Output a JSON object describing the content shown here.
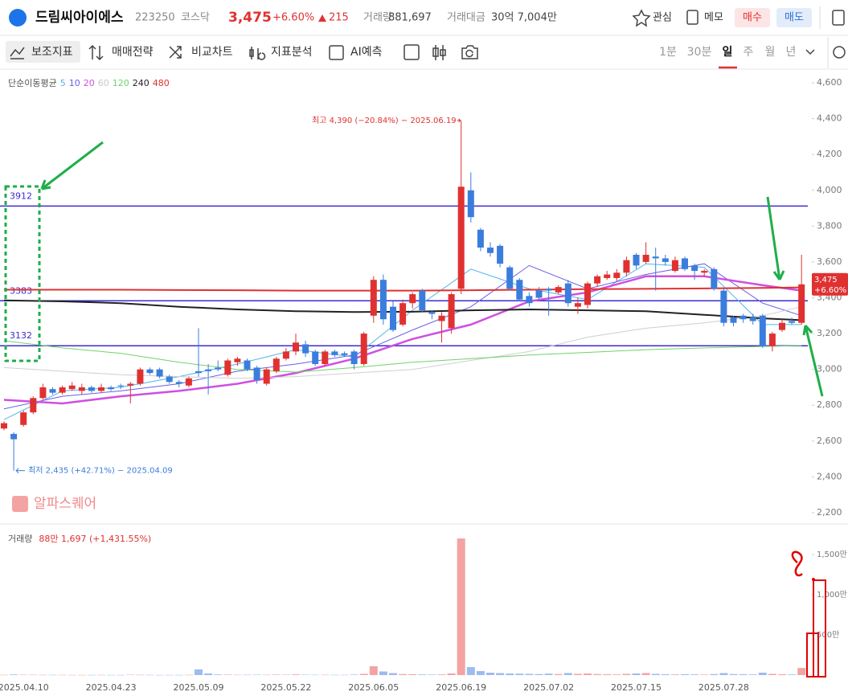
{
  "header": {
    "name": "드림씨아이에스",
    "code": "223250",
    "market": "코스닥",
    "price": "3,475",
    "change_pct": "+6.60%",
    "change": "215",
    "volume_label": "거래량",
    "volume": "881,697",
    "amount_label": "거래대금",
    "amount": "30억 7,004만",
    "watch": "관심",
    "memo": "메모",
    "buy": "매수",
    "sell": "매도"
  },
  "toolbar": {
    "tools": [
      "보조지표",
      "매매전략",
      "비교차트",
      "지표분석",
      "AI예측"
    ],
    "timeframes": [
      "1분",
      "30분",
      "일",
      "주",
      "월",
      "년"
    ]
  },
  "chart_data": [
    {
      "type": "candlestick",
      "legend_title": "단순이동평균",
      "watermark": "알파스퀘어",
      "categories": [
        null,
        null,
        "2025.04.10",
        null,
        null,
        null,
        null,
        null,
        null,
        null,
        null,
        "2025.04.23",
        null,
        null,
        null,
        null,
        null,
        null,
        null,
        null,
        "2025.05.09",
        null,
        null,
        null,
        null,
        null,
        null,
        null,
        null,
        "2025.05.22",
        null,
        null,
        null,
        null,
        null,
        null,
        null,
        null,
        "2025.06.05",
        null,
        null,
        null,
        null,
        null,
        null,
        null,
        null,
        "2025.06.19",
        null,
        null,
        null,
        null,
        null,
        null,
        null,
        null,
        "2025.07.02",
        null,
        null,
        null,
        null,
        null,
        null,
        null,
        null,
        "2025.07.15",
        null,
        null,
        null,
        null,
        null,
        null,
        null,
        null,
        "2025.07.28",
        null,
        null,
        null,
        null,
        null,
        null,
        null,
        null
      ],
      "open": [
        2670,
        2640,
        2690,
        2760,
        2840,
        2890,
        2870,
        2890,
        2880,
        2900,
        2880,
        2900,
        2910,
        2910,
        2920,
        3000,
        3000,
        2960,
        2930,
        2910,
        2990,
        3000,
        3010,
        2970,
        3040,
        3050,
        3010,
        2920,
        2990,
        3060,
        3100,
        3140,
        3100,
        3030,
        3100,
        3090,
        3100,
        3030,
        3300,
        3500,
        3350,
        3250,
        3370,
        3440,
        3320,
        3270,
        3230,
        3450,
        4000,
        3780,
        3680,
        3690,
        3570,
        3500,
        3410,
        3440,
        3450,
        3430,
        3480,
        3350,
        3360,
        3480,
        3510,
        3510,
        3540,
        3640,
        3600,
        3630,
        3620,
        3550,
        3620,
        3580,
        3540,
        3560,
        3440,
        3290,
        3300,
        3290,
        3300,
        3130,
        3220,
        3270,
        3260
      ],
      "high": [
        2710,
        2650,
        2770,
        2850,
        2920,
        2900,
        2910,
        2930,
        2920,
        2910,
        2920,
        2910,
        2920,
        2930,
        3010,
        3010,
        3010,
        2970,
        2940,
        2960,
        3230,
        3030,
        3050,
        3060,
        3070,
        3060,
        3020,
        3010,
        3070,
        3120,
        3200,
        3160,
        3110,
        3110,
        3110,
        3100,
        3110,
        3210,
        3520,
        3530,
        3380,
        3390,
        3430,
        3450,
        3330,
        3320,
        3430,
        4390,
        4100,
        3790,
        3710,
        3700,
        3580,
        3510,
        3430,
        3460,
        3460,
        3470,
        3500,
        3400,
        3490,
        3530,
        3550,
        3560,
        3630,
        3650,
        3710,
        3680,
        3640,
        3630,
        3630,
        3590,
        3560,
        3570,
        3450,
        3300,
        3310,
        3310,
        3310,
        3210,
        3280,
        3290,
        3640
      ],
      "low": [
        2660,
        2435,
        2680,
        2750,
        2830,
        2860,
        2860,
        2880,
        2860,
        2870,
        2870,
        2880,
        2890,
        2810,
        2910,
        2970,
        2950,
        2920,
        2900,
        2900,
        2960,
        2860,
        2990,
        2960,
        3020,
        2990,
        2920,
        2910,
        2980,
        3050,
        3080,
        3070,
        3020,
        3020,
        3070,
        3070,
        3000,
        3020,
        3260,
        3250,
        3210,
        3240,
        3340,
        3320,
        3280,
        3150,
        3200,
        3420,
        3820,
        3660,
        3630,
        3570,
        3440,
        3380,
        3350,
        3390,
        3300,
        3420,
        3350,
        3310,
        3340,
        3460,
        3500,
        3490,
        3520,
        3560,
        3590,
        3440,
        3580,
        3540,
        3550,
        3500,
        3520,
        3440,
        3240,
        3240,
        3260,
        3250,
        3120,
        3100,
        3210,
        3250,
        3250
      ],
      "close": [
        2700,
        2610,
        2760,
        2840,
        2900,
        2870,
        2900,
        2910,
        2900,
        2880,
        2900,
        2890,
        2905,
        2920,
        3000,
        2980,
        2960,
        2930,
        2920,
        2950,
        2980,
        2990,
        3000,
        3050,
        3060,
        3000,
        2940,
        3000,
        3060,
        3100,
        3150,
        3090,
        3030,
        3100,
        3080,
        3080,
        3030,
        3200,
        3500,
        3280,
        3220,
        3370,
        3420,
        3330,
        3310,
        3300,
        3420,
        4020,
        3850,
        3680,
        3650,
        3590,
        3450,
        3390,
        3370,
        3400,
        3440,
        3460,
        3370,
        3370,
        3480,
        3520,
        3530,
        3540,
        3610,
        3580,
        3640,
        3620,
        3600,
        3610,
        3560,
        3550,
        3550,
        3450,
        3260,
        3260,
        3280,
        3270,
        3130,
        3200,
        3260,
        3260,
        3475
      ],
      "up_color": "#e03131",
      "down_color": "#3b7ddd",
      "moving_averages": [
        {
          "name": "5",
          "color": "#4db6e8",
          "width": 1,
          "x": [
            0,
            6,
            12,
            18,
            24,
            30,
            36,
            42,
            48,
            54,
            60,
            66,
            72,
            78,
            82
          ],
          "values": [
            2720,
            2880,
            2900,
            2960,
            3030,
            3110,
            3070,
            3330,
            3560,
            3450,
            3390,
            3590,
            3570,
            3250,
            3250
          ]
        },
        {
          "name": "10",
          "color": "#6a5ee8",
          "width": 1,
          "x": [
            0,
            6,
            12,
            18,
            24,
            30,
            36,
            42,
            48,
            54,
            60,
            66,
            72,
            78,
            82
          ],
          "values": [
            2780,
            2850,
            2880,
            2920,
            2990,
            3030,
            3080,
            3220,
            3350,
            3580,
            3450,
            3530,
            3590,
            3370,
            3300
          ]
        },
        {
          "name": "20",
          "color": "#cf4fe0",
          "width": 2.5,
          "x": [
            0,
            6,
            12,
            18,
            24,
            30,
            36,
            42,
            48,
            54,
            60,
            66,
            72,
            78,
            82
          ],
          "values": [
            2830,
            2810,
            2850,
            2880,
            2920,
            2980,
            3060,
            3170,
            3250,
            3380,
            3430,
            3520,
            3520,
            3470,
            3440
          ]
        },
        {
          "name": "60",
          "color": "#cfcfcf",
          "width": 1,
          "x": [
            0,
            6,
            12,
            18,
            24,
            30,
            36,
            42,
            48,
            54,
            60,
            66,
            72,
            78,
            82
          ],
          "values": [
            3010,
            2990,
            2970,
            2960,
            2950,
            2960,
            2980,
            3000,
            3050,
            3100,
            3180,
            3230,
            3260,
            3300,
            3350
          ]
        },
        {
          "name": "120",
          "color": "#6fd36a",
          "width": 1,
          "x": [
            0,
            6,
            12,
            18,
            24,
            30,
            36,
            42,
            48,
            54,
            60,
            66,
            72,
            78,
            82
          ],
          "values": [
            3160,
            3120,
            3090,
            3040,
            3000,
            2985,
            3010,
            3040,
            3060,
            3080,
            3095,
            3110,
            3120,
            3128,
            3133
          ]
        },
        {
          "name": "240",
          "color": "#222222",
          "width": 2,
          "x": [
            0,
            6,
            12,
            18,
            24,
            30,
            36,
            42,
            48,
            54,
            60,
            66,
            72,
            78,
            82
          ],
          "values": [
            3385,
            3380,
            3370,
            3350,
            3335,
            3325,
            3320,
            3322,
            3330,
            3335,
            3330,
            3325,
            3305,
            3285,
            3275
          ]
        },
        {
          "name": "480",
          "color": "#e03131",
          "width": 2,
          "x": [
            0,
            6,
            12,
            18,
            24,
            30,
            36,
            42,
            48,
            54,
            60,
            66,
            72,
            78,
            82
          ],
          "values": [
            3445,
            3445,
            3445,
            3443,
            3442,
            3440,
            3440,
            3440,
            3442,
            3445,
            3448,
            3450,
            3452,
            3455,
            3458
          ]
        }
      ],
      "levels": [
        3912,
        3383,
        3132
      ],
      "level_color": "#3d2bd1",
      "high_label": "최고 4,390 (−20.84%) − 2025.06.19",
      "low_label": "최저 2,435 (+42.71%) − 2025.04.09",
      "last_price_label": "3,475",
      "last_change_label": "+6.60%",
      "ylim": [
        2146,
        4672
      ],
      "yticks": [
        {
          "value": 2200,
          "label": "2,200"
        },
        {
          "value": 2400,
          "label": "2,400"
        },
        {
          "value": 2600,
          "label": "2,600"
        },
        {
          "value": 2800,
          "label": "2,800"
        },
        {
          "value": 3000,
          "label": "3,000"
        },
        {
          "value": 3200,
          "label": "3,200"
        },
        {
          "value": 3400,
          "label": "3,400"
        },
        {
          "value": 3600,
          "label": "3,600"
        },
        {
          "value": 3800,
          "label": "3,800"
        },
        {
          "value": 4000,
          "label": "4,000"
        },
        {
          "value": 4200,
          "label": "4,200"
        },
        {
          "value": 4400,
          "label": "4,400"
        },
        {
          "value": 4600,
          "label": "4,600"
        }
      ]
    },
    {
      "type": "bar",
      "title": "거래량",
      "title_value": "88만 1,697 (+1,431.55%)",
      "values": [
        3,
        8,
        5,
        4,
        3,
        3,
        3,
        2,
        2,
        2,
        3,
        2,
        2,
        5,
        4,
        3,
        2,
        2,
        2,
        3,
        70,
        20,
        8,
        6,
        4,
        4,
        5,
        4,
        6,
        5,
        8,
        5,
        4,
        4,
        3,
        3,
        6,
        15,
        110,
        45,
        25,
        12,
        10,
        8,
        6,
        8,
        20,
        1700,
        100,
        50,
        30,
        25,
        20,
        18,
        15,
        12,
        18,
        12,
        25,
        15,
        20,
        12,
        10,
        8,
        15,
        20,
        25,
        15,
        10,
        8,
        10,
        8,
        6,
        12,
        25,
        12,
        10,
        8,
        30,
        15,
        10,
        8,
        88
      ],
      "up_color": "#f4a3a3",
      "down_color": "#9cbcf0",
      "ylim": [
        0,
        1850
      ],
      "yticks": [
        {
          "value": 500,
          "label": "500만"
        },
        {
          "value": 1000,
          "label": "1,000만"
        },
        {
          "value": 1500,
          "label": "1,500만"
        }
      ]
    }
  ]
}
